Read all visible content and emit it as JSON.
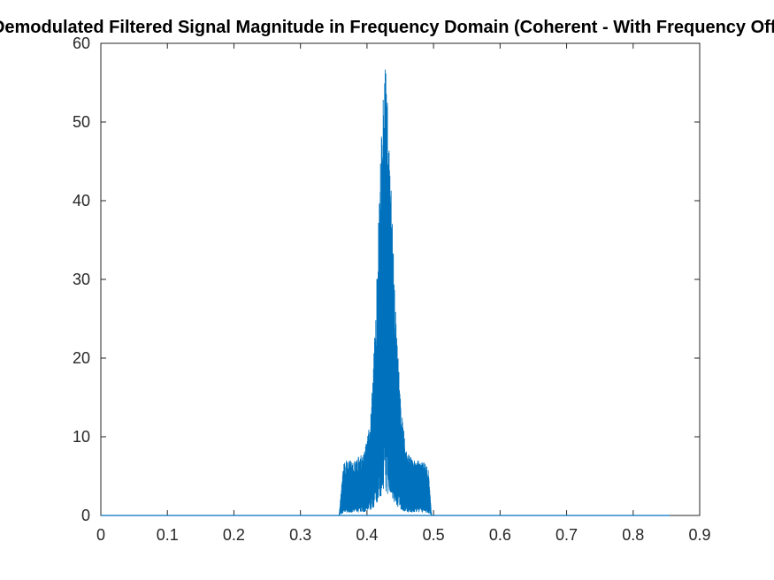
{
  "chart_data": {
    "type": "line",
    "title": "Demodulated Filtered Signal Magnitude in Frequency Domain (Coherent - With Frequency Offset)",
    "xlabel": "",
    "ylabel": "",
    "xlim": [
      0,
      0.9
    ],
    "ylim": [
      0,
      60
    ],
    "x_ticks": [
      "0",
      "0.1",
      "0.2",
      "0.3",
      "0.4",
      "0.5",
      "0.6",
      "0.7",
      "0.8",
      "0.9"
    ],
    "y_ticks": [
      "0",
      "10",
      "20",
      "30",
      "40",
      "50",
      "60"
    ],
    "grid": false,
    "series_color": "#0072BD",
    "series": [
      {
        "x_range": [
          0,
          0.855
        ],
        "baseline": 0,
        "band_start": 0.358,
        "band_end": 0.497,
        "center": 0.428,
        "peak": 60,
        "sideband_level": 7,
        "envelope_x": [
          0.358,
          0.365,
          0.38,
          0.395,
          0.405,
          0.41,
          0.415,
          0.42,
          0.425,
          0.428,
          0.432,
          0.437,
          0.442,
          0.447,
          0.452,
          0.46,
          0.47,
          0.485,
          0.492,
          0.497
        ],
        "envelope_y": [
          0,
          7,
          7,
          8,
          12,
          20,
          31,
          45,
          55,
          60,
          52,
          40,
          28,
          20,
          13,
          8,
          7,
          7,
          6,
          0
        ]
      }
    ]
  }
}
